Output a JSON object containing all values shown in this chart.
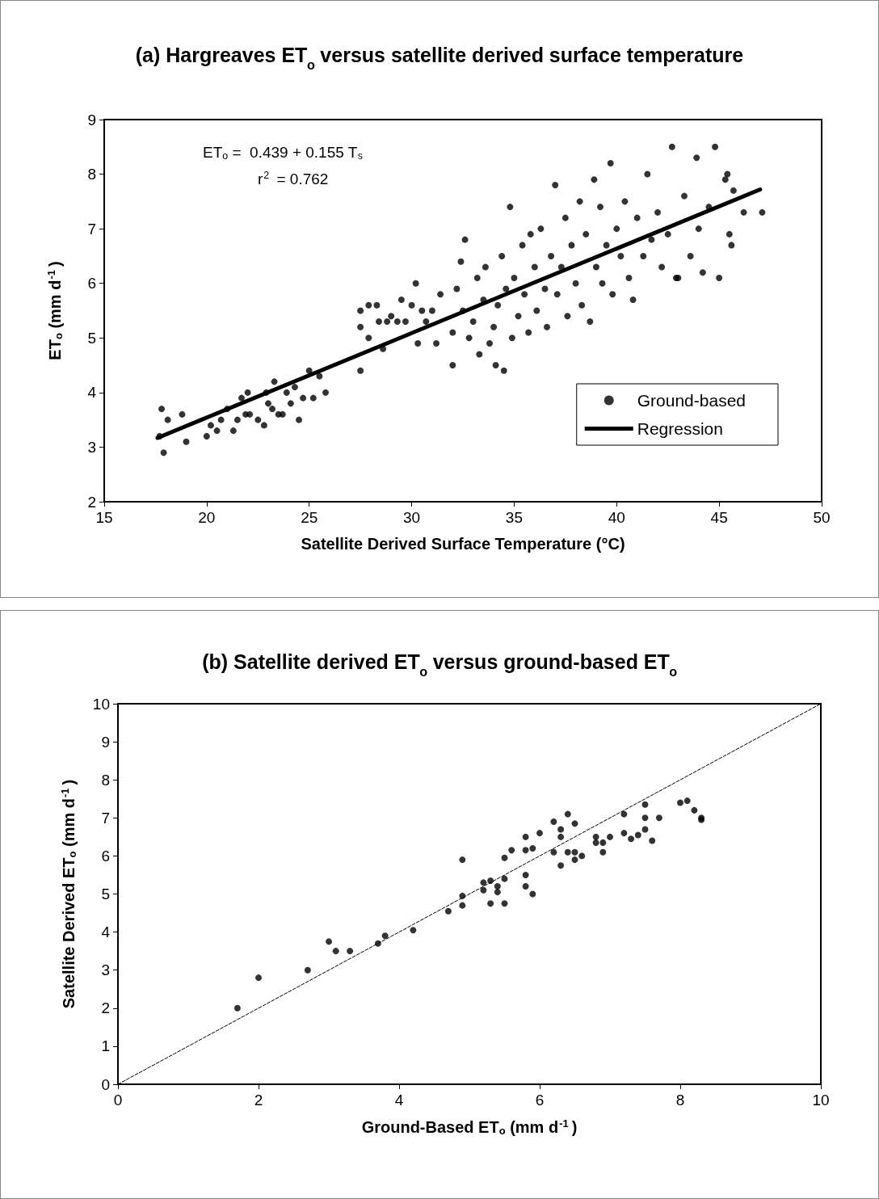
{
  "chart_data": [
    {
      "type": "scatter",
      "title": "(a) Hargreaves ET$_{o}$ versus satellite derived surface temperature",
      "xlabel": "Satellite Derived Surface Temperature (°C)",
      "ylabel": "ET$_{o}$ (mm d$^{-1}$)",
      "annotations": [
        "ET$_{o}$ =  0.439 + 0.155 T$_{s}$",
        "r$^{2}$ = 0.762"
      ],
      "xlim": [
        15,
        50
      ],
      "xticks": [
        15,
        20,
        25,
        30,
        35,
        40,
        45,
        50
      ],
      "ylim": [
        2,
        9
      ],
      "yticks": [
        2,
        3,
        4,
        5,
        6,
        7,
        8,
        9
      ],
      "grid": false,
      "legend": "bottom right",
      "marker": "circle",
      "series": [
        {
          "name": "Ground-based",
          "color": "#000000",
          "x": [
            17.8,
            17.9,
            18.1,
            17.7,
            18.8,
            19.0,
            20.0,
            20.2,
            20.5,
            20.7,
            21.0,
            21.3,
            21.5,
            21.7,
            22.0,
            22.1,
            22.5,
            22.8,
            23.0,
            23.2,
            23.3,
            23.5,
            23.7,
            23.9,
            24.1,
            24.3,
            24.5,
            24.7,
            25.0,
            25.2,
            25.5,
            25.8,
            22.9,
            21.9,
            27.5,
            27.5,
            27.5,
            27.9,
            27.9,
            28.3,
            28.6,
            28.8,
            29.0,
            29.3,
            29.7,
            30.0,
            30.3,
            30.5,
            30.7,
            31.0,
            31.2,
            31.4,
            30.2,
            29.5,
            28.4,
            32.0,
            32.0,
            32.2,
            32.4,
            32.5,
            32.6,
            32.8,
            33.0,
            33.2,
            33.3,
            33.5,
            33.6,
            33.8,
            34.0,
            34.1,
            34.2,
            34.4,
            34.5,
            34.6,
            34.8,
            34.9,
            35.0,
            35.2,
            35.4,
            35.5,
            35.7,
            35.8,
            36.0,
            36.1,
            36.3,
            36.5,
            36.6,
            36.8,
            37.0,
            37.1,
            37.3,
            37.5,
            37.6,
            37.8,
            38.0,
            38.2,
            38.3,
            38.5,
            38.7,
            38.9,
            39.0,
            39.2,
            39.3,
            39.5,
            39.7,
            39.8,
            40.0,
            40.2,
            40.4,
            40.6,
            40.8,
            41.0,
            41.3,
            41.5,
            41.7,
            42.0,
            42.2,
            42.5,
            42.7,
            42.9,
            43.3,
            43.6,
            43.9,
            44.2,
            44.5,
            44.8,
            45.0,
            45.3,
            45.5,
            45.7,
            45.6,
            46.2,
            47.1,
            44.0,
            43.0,
            45.4
          ],
          "values": [
            3.7,
            2.9,
            3.5,
            3.2,
            3.6,
            3.1,
            3.2,
            3.4,
            3.3,
            3.5,
            3.7,
            3.3,
            3.5,
            3.9,
            4.0,
            3.6,
            3.5,
            3.4,
            3.8,
            3.7,
            4.2,
            3.6,
            3.6,
            4.0,
            3.8,
            4.1,
            3.5,
            3.9,
            4.4,
            3.9,
            4.3,
            4.0,
            4.0,
            3.6,
            4.4,
            5.5,
            5.2,
            5.6,
            5.0,
            5.6,
            4.8,
            5.3,
            5.4,
            5.3,
            5.3,
            5.6,
            4.9,
            5.5,
            5.3,
            5.5,
            4.9,
            5.8,
            6.0,
            5.7,
            5.3,
            4.5,
            5.1,
            5.9,
            6.4,
            5.5,
            6.8,
            5.0,
            5.3,
            6.1,
            4.7,
            5.7,
            6.3,
            4.9,
            5.2,
            4.5,
            5.6,
            6.5,
            4.4,
            5.9,
            7.4,
            5.0,
            6.1,
            5.4,
            6.7,
            5.8,
            5.1,
            6.9,
            6.3,
            5.5,
            7.0,
            5.9,
            5.2,
            6.5,
            7.8,
            5.8,
            6.3,
            7.2,
            5.4,
            6.7,
            6.0,
            7.5,
            5.6,
            6.9,
            5.3,
            7.9,
            6.3,
            7.4,
            6.0,
            6.7,
            8.2,
            5.8,
            7.0,
            6.5,
            7.5,
            6.1,
            5.7,
            7.2,
            6.5,
            8.0,
            6.8,
            7.3,
            6.3,
            6.9,
            8.5,
            6.1,
            7.6,
            6.5,
            8.3,
            6.2,
            7.4,
            8.5,
            6.1,
            7.9,
            6.9,
            7.7,
            6.7,
            7.3,
            7.3,
            7.0,
            6.1,
            8.0
          ]
        },
        {
          "name": "Regression",
          "type": "line",
          "color": "#000000",
          "marker": "none",
          "line_style": "solid",
          "x": [
            17.6,
            47
          ],
          "values": [
            3.17,
            7.72
          ]
        }
      ]
    },
    {
      "type": "scatter",
      "title": "(b) Satellite derived ET$_{o}$ versus ground-based ET$_{o}$",
      "xlabel": "Ground-Based ET$_{o}$ (mm d$^{-1}$)",
      "ylabel": "Satellite Derived ET$_{o}$ (mm d$^{-1}$)",
      "xlim": [
        0,
        10
      ],
      "xticks": [
        0,
        2,
        4,
        6,
        8,
        10
      ],
      "ylim": [
        0,
        10
      ],
      "yticks": [
        0,
        1,
        2,
        3,
        4,
        5,
        6,
        7,
        8,
        9,
        10
      ],
      "grid": false,
      "marker": "circle",
      "series": [
        {
          "color": "#000000",
          "x": [
            1.7,
            2.0,
            2.7,
            3.0,
            3.1,
            3.3,
            3.7,
            3.8,
            4.2,
            4.7,
            4.9,
            4.9,
            4.9,
            5.2,
            5.2,
            5.3,
            5.3,
            5.4,
            5.4,
            5.5,
            5.5,
            5.5,
            5.6,
            5.8,
            5.8,
            5.8,
            5.8,
            5.9,
            5.9,
            6.0,
            6.2,
            6.2,
            6.3,
            6.3,
            6.3,
            6.4,
            6.4,
            6.5,
            6.5,
            6.5,
            6.6,
            6.8,
            6.8,
            6.9,
            6.9,
            7.0,
            7.2,
            7.2,
            7.3,
            7.4,
            7.5,
            7.5,
            7.5,
            7.6,
            7.7,
            8.0,
            8.1,
            8.2,
            8.3,
            8.3
          ],
          "values": [
            2.0,
            2.8,
            3.0,
            3.75,
            3.5,
            3.5,
            3.7,
            3.9,
            4.05,
            4.55,
            4.7,
            4.95,
            5.9,
            5.3,
            5.1,
            5.35,
            4.75,
            5.2,
            5.05,
            5.4,
            4.75,
            5.95,
            6.15,
            5.5,
            6.15,
            5.2,
            6.5,
            5.0,
            6.2,
            6.6,
            6.9,
            6.1,
            6.7,
            5.75,
            6.5,
            6.1,
            7.1,
            6.85,
            5.9,
            6.1,
            6.0,
            6.35,
            6.5,
            6.1,
            6.35,
            6.5,
            7.1,
            6.6,
            6.45,
            6.55,
            7.35,
            7.0,
            6.7,
            6.4,
            7.0,
            7.4,
            7.45,
            7.2,
            7.0,
            6.95
          ]
        },
        {
          "type": "line",
          "color": "#000000",
          "marker": "none",
          "line_style": "dashed",
          "x": [
            0,
            10
          ],
          "values": [
            0,
            10
          ]
        }
      ]
    }
  ]
}
